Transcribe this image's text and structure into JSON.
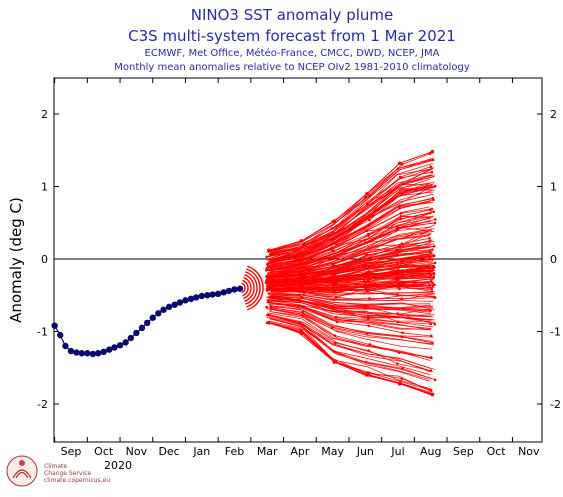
{
  "chart_data": {
    "type": "line",
    "title": "NINO3 SST anomaly plume",
    "subtitle": "C3S multi-system forecast from 1 Mar 2021",
    "systems_line": "ECMWF, Met Office, Météo-France, CMCC, DWD, NCEP, JMA",
    "climatology_line": "Monthly mean anomalies relative to NCEP OIv2 1981-2010 climatology",
    "ylabel": "Anomaly (deg C)",
    "ylim": [
      -2.5,
      2.5
    ],
    "yticks": [
      -2,
      -1,
      0,
      1,
      2
    ],
    "ytick_labels": [
      "-2",
      "-1",
      "0",
      "1",
      "2"
    ],
    "x_month_labels": [
      "Sep",
      "Oct",
      "Nov",
      "Dec",
      "Jan",
      "Feb",
      "Mar",
      "Apr",
      "May",
      "Jun",
      "Jul",
      "Aug",
      "Sep",
      "Oct",
      "Nov"
    ],
    "x_year_label": "2020",
    "grid": false,
    "zero_line": true,
    "observed": {
      "color": "#0a0a6a",
      "x_month_index": [
        -0.5,
        -0.33,
        -0.17,
        0,
        0.17,
        0.33,
        0.5,
        0.67,
        0.83,
        1,
        1.17,
        1.33,
        1.5,
        1.67,
        1.83,
        2,
        2.17,
        2.33,
        2.5,
        2.67,
        2.83,
        3,
        3.17,
        3.33,
        3.5,
        3.67,
        3.83,
        4,
        4.17,
        4.33,
        4.5,
        4.67,
        4.83,
        5,
        5.17
      ],
      "values": [
        -0.92,
        -1.05,
        -1.2,
        -1.27,
        -1.29,
        -1.3,
        -1.3,
        -1.31,
        -1.3,
        -1.28,
        -1.25,
        -1.22,
        -1.19,
        -1.15,
        -1.09,
        -1.02,
        -0.95,
        -0.88,
        -0.81,
        -0.75,
        -0.7,
        -0.66,
        -0.63,
        -0.6,
        -0.57,
        -0.55,
        -0.53,
        -0.51,
        -0.5,
        -0.49,
        -0.48,
        -0.46,
        -0.44,
        -0.42,
        -0.41
      ]
    },
    "forecast": {
      "color": "#ff0000",
      "start_value": -0.4,
      "months": [
        "Mar",
        "Apr",
        "May",
        "Jun",
        "Jul",
        "Aug"
      ],
      "upper_envelope": [
        0.12,
        0.25,
        0.52,
        0.9,
        1.32,
        1.48
      ],
      "lower_envelope": [
        -0.88,
        -1.02,
        -1.42,
        -1.6,
        -1.72,
        -1.87
      ],
      "median": [
        -0.35,
        -0.32,
        -0.28,
        -0.22,
        -0.18,
        -0.15
      ],
      "member_count": 220
    }
  },
  "logo": {
    "line1": "Climate",
    "line2": "Change Service",
    "line3": "climate.copernicus.eu"
  }
}
